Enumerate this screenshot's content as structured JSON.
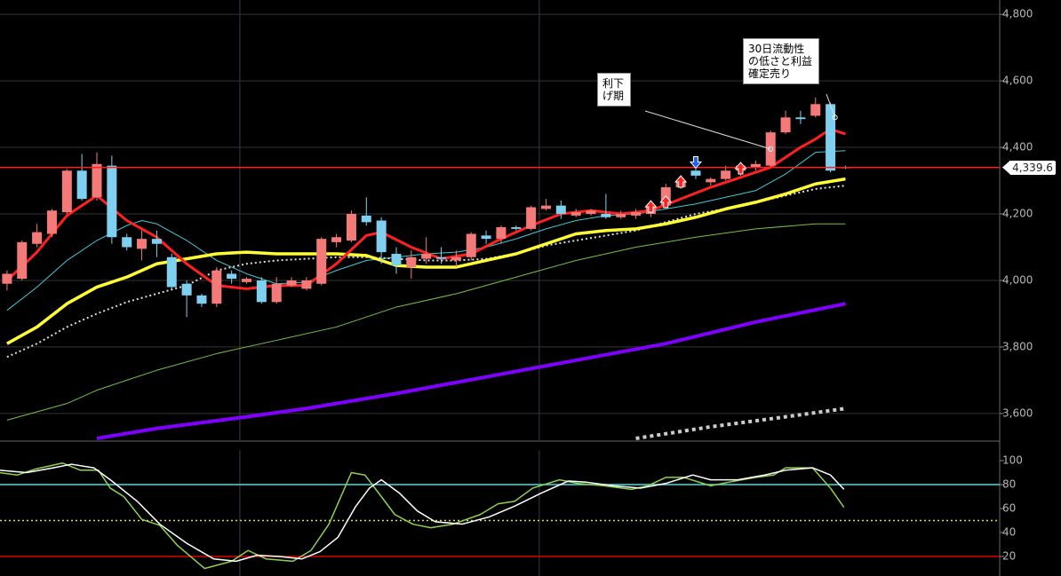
{
  "chart_data": [
    {
      "type": "candlestick",
      "xlim": [
        -0.47,
        66.3
      ],
      "ylim": [
        3517,
        4843
      ],
      "yticks": [
        {
          "value": 3600,
          "label": "3,600"
        },
        {
          "value": 3800,
          "label": "3,800"
        },
        {
          "value": 4000,
          "label": "4,000"
        },
        {
          "value": 4200,
          "label": "4,200"
        },
        {
          "value": 4400,
          "label": "4,400"
        },
        {
          "value": 4600,
          "label": "4,600"
        },
        {
          "value": 4800,
          "label": "4,800"
        }
      ],
      "xgrid": [
        15.55,
        35.55
      ],
      "grid": true,
      "up_color": "#f47a7a",
      "down_color": "#7fd0f0",
      "open": [
        3990,
        4005,
        4110,
        4140,
        4205,
        4330,
        4250,
        4345,
        4130,
        4095,
        4125,
        4070,
        3990,
        3955,
        3930,
        4020,
        3995,
        4000,
        3935,
        3985,
        3975,
        3990,
        4115,
        4120,
        4195,
        4180,
        4080,
        4040,
        4065,
        4070,
        4060,
        4070,
        4135,
        4125,
        4160,
        4155,
        4215,
        4225,
        4195,
        4200,
        4200,
        4190,
        4195,
        4200,
        4225,
        4280,
        4330,
        4295,
        4305,
        4330,
        4340,
        4345,
        4445,
        4490,
        4495,
        4530,
        4340
      ],
      "high": [
        4030,
        4120,
        4170,
        4215,
        4335,
        4380,
        4385,
        4375,
        4140,
        4150,
        4150,
        4080,
        4000,
        3960,
        4040,
        4030,
        4010,
        4010,
        4010,
        4010,
        4010,
        4130,
        4140,
        4210,
        4250,
        4190,
        4100,
        4090,
        4130,
        4100,
        4090,
        4145,
        4150,
        4165,
        4165,
        4225,
        4245,
        4240,
        4215,
        4215,
        4260,
        4210,
        4215,
        4240,
        4290,
        4310,
        4350,
        4310,
        4345,
        4355,
        4360,
        4450,
        4510,
        4510,
        4550,
        4535,
        4345
      ],
      "low": [
        3970,
        4000,
        4100,
        4130,
        4200,
        4240,
        4240,
        4110,
        4090,
        4060,
        4070,
        3975,
        3890,
        3920,
        3920,
        3990,
        3990,
        3930,
        3930,
        3980,
        3970,
        3985,
        4100,
        4115,
        4165,
        4050,
        4020,
        4005,
        4050,
        4050,
        4040,
        4060,
        4110,
        4110,
        4150,
        4150,
        4210,
        4185,
        4190,
        4195,
        4185,
        4185,
        4185,
        4190,
        4215,
        4275,
        4305,
        4285,
        4300,
        4315,
        4330,
        4340,
        4440,
        4470,
        4490,
        4325,
        4335
      ],
      "close": [
        4020,
        4115,
        4145,
        4210,
        4330,
        4245,
        4350,
        4130,
        4100,
        4125,
        4110,
        3980,
        3955,
        3930,
        4030,
        4005,
        4005,
        3935,
        3990,
        4000,
        4000,
        4125,
        4130,
        4200,
        4175,
        4085,
        4045,
        4070,
        4080,
        4065,
        4070,
        4140,
        4125,
        4160,
        4155,
        4220,
        4225,
        4200,
        4205,
        4210,
        4190,
        4200,
        4205,
        4220,
        4280,
        4300,
        4315,
        4305,
        4330,
        4345,
        4350,
        4445,
        4490,
        4485,
        4530,
        4330,
        4339.6
      ],
      "lines": [
        {
          "color": "#76c043",
          "width": 1,
          "x": [
            0,
            4,
            6,
            8,
            10,
            14,
            18,
            22,
            26,
            30,
            34,
            38,
            42,
            46,
            50,
            54,
            56
          ],
          "values": [
            3580,
            3630,
            3670,
            3700,
            3730,
            3780,
            3820,
            3860,
            3920,
            3960,
            4010,
            4060,
            4100,
            4130,
            4155,
            4170,
            4170
          ]
        },
        {
          "color": "#7f00ff",
          "width": 4,
          "x": [
            6,
            10,
            16,
            20,
            26,
            32,
            38,
            44,
            50,
            56
          ],
          "values": [
            3525,
            3555,
            3590,
            3615,
            3660,
            3710,
            3760,
            3810,
            3875,
            3930
          ]
        },
        {
          "color": "#cccccc",
          "width": 4,
          "dash": "4,4",
          "x": [
            42,
            47,
            52,
            56
          ],
          "values": [
            3525,
            3560,
            3590,
            3615
          ]
        },
        {
          "color": "#40c8d8",
          "width": 1,
          "x": [
            0,
            2,
            4,
            6,
            8,
            9,
            10,
            12,
            14,
            16,
            18,
            20,
            22,
            24,
            26,
            28,
            30,
            32,
            34,
            36,
            38,
            40,
            42,
            44,
            46,
            48,
            50,
            52,
            54,
            56
          ],
          "values": [
            3910,
            3980,
            4060,
            4120,
            4165,
            4180,
            4170,
            4120,
            4060,
            4020,
            3990,
            3995,
            4030,
            4060,
            4070,
            4080,
            4085,
            4100,
            4125,
            4155,
            4180,
            4195,
            4200,
            4215,
            4230,
            4250,
            4270,
            4320,
            4385,
            4390
          ]
        },
        {
          "color": "#dddddd",
          "width": 2,
          "dash": "2,3",
          "x": [
            0,
            2,
            4,
            6,
            8,
            10,
            12,
            14,
            16,
            18,
            20,
            22,
            24,
            26,
            28,
            30,
            32,
            34,
            36,
            38,
            40,
            42,
            44,
            46,
            48,
            50,
            52,
            54,
            56
          ],
          "values": [
            3770,
            3810,
            3860,
            3900,
            3935,
            3960,
            3985,
            4030,
            4050,
            4060,
            4065,
            4070,
            4070,
            4065,
            4060,
            4060,
            4065,
            4080,
            4105,
            4120,
            4135,
            4150,
            4175,
            4200,
            4215,
            4235,
            4255,
            4275,
            4285
          ]
        },
        {
          "color": "#ffff33",
          "width": 3.5,
          "x": [
            0,
            2,
            4,
            6,
            8,
            10,
            12,
            14,
            16,
            18,
            20,
            22,
            24,
            26,
            28,
            30,
            32,
            34,
            36,
            38,
            40,
            42,
            44,
            46,
            48,
            50,
            52,
            54,
            56
          ],
          "values": [
            3810,
            3860,
            3930,
            3980,
            4010,
            4050,
            4065,
            4080,
            4085,
            4080,
            4080,
            4080,
            4075,
            4045,
            4040,
            4040,
            4060,
            4080,
            4110,
            4140,
            4150,
            4155,
            4170,
            4190,
            4215,
            4235,
            4260,
            4290,
            4305
          ]
        },
        {
          "color": "#ff2020",
          "width": 3,
          "x": [
            0,
            2,
            4,
            6,
            8,
            10,
            12,
            14,
            16,
            18,
            20,
            22,
            24,
            25,
            27,
            29,
            31,
            33,
            35,
            37,
            39,
            41,
            43,
            45,
            47,
            49,
            51,
            53,
            54,
            55,
            56
          ],
          "values": [
            4000,
            4085,
            4195,
            4255,
            4180,
            4130,
            4050,
            3985,
            3975,
            3985,
            3985,
            4050,
            4135,
            4145,
            4100,
            4065,
            4080,
            4125,
            4165,
            4200,
            4210,
            4200,
            4210,
            4245,
            4280,
            4310,
            4340,
            4400,
            4425,
            4455,
            4440
          ]
        }
      ],
      "signals_up": {
        "color": "#ff2020",
        "x": [
          43,
          44,
          45,
          49
        ],
        "values": [
          4221,
          4235,
          4296,
          4336
        ]
      },
      "signals_down": {
        "color": "#2060ff",
        "x": [
          46
        ],
        "values": [
          4356
        ]
      },
      "price_line": {
        "value": 4339.6,
        "label": "4,339.6",
        "color": "#ff2020"
      },
      "annotations": [
        {
          "text": "利下げ期",
          "x": 51,
          "y": 4395
        },
        {
          "text": "30日流動性の低さと利益確定売り",
          "x": 55.3,
          "y": 4490
        }
      ]
    },
    {
      "type": "line",
      "xlim": [
        -0.47,
        66.3
      ],
      "ylim": [
        3.7,
        108.9
      ],
      "yticks": [
        20,
        40,
        60,
        80,
        100
      ],
      "xgrid": [
        15.55,
        35.55
      ],
      "levels": [
        {
          "value": 80,
          "color": "#40e0e0"
        },
        {
          "value": 50,
          "color": "#e0e040",
          "dash": "2,3"
        },
        {
          "value": 20,
          "color": "#e00000"
        }
      ],
      "series": [
        {
          "color": "#8fd14f",
          "x": [
            -0.5,
            0.7,
            1.9,
            3.7,
            4.9,
            6.1,
            6.9,
            7.8,
            9,
            10.2,
            11.4,
            13.2,
            15,
            16.1,
            17.3,
            19.1,
            20.3,
            21.5,
            23,
            23.9,
            25,
            25.9,
            27.1,
            28.3,
            29.8,
            31.6,
            32.8,
            33.9,
            35.1,
            36.9,
            38.1,
            39.9,
            41.7,
            42.8,
            44,
            45.2,
            47,
            48.2,
            50,
            51.2,
            52,
            53.8,
            55,
            55.9
          ],
          "values": [
            90,
            88,
            93,
            98,
            92,
            92,
            77,
            70,
            51,
            46,
            29,
            10,
            16,
            25,
            18,
            16,
            25,
            47,
            90,
            88,
            70,
            55,
            47,
            44,
            47,
            55,
            64,
            66,
            77,
            84,
            81,
            79,
            76,
            79,
            86,
            86,
            79,
            82,
            86,
            88,
            94,
            94,
            77,
            61
          ]
        },
        {
          "color": "#ffffff",
          "x": [
            -0.5,
            1.3,
            3.1,
            4.3,
            5.8,
            6.9,
            8.7,
            10.2,
            12,
            13.8,
            15.3,
            16.7,
            18.2,
            19.7,
            20.9,
            22.1,
            23.3,
            24.2,
            25,
            26.2,
            27.4,
            28.6,
            30.4,
            32.2,
            33.9,
            35.7,
            37.5,
            38.7,
            40.5,
            42.3,
            44,
            45.8,
            47,
            48.8,
            50.6,
            52,
            53.8,
            55,
            55.9
          ],
          "values": [
            92,
            90,
            94,
            97,
            94,
            84,
            66,
            47,
            31,
            18,
            16,
            21,
            20,
            18,
            24,
            36,
            62,
            77,
            84,
            73,
            58,
            49,
            47,
            53,
            62,
            73,
            83,
            82,
            79,
            77,
            81,
            88,
            84,
            84,
            88,
            92,
            94,
            88,
            76
          ]
        }
      ]
    }
  ]
}
